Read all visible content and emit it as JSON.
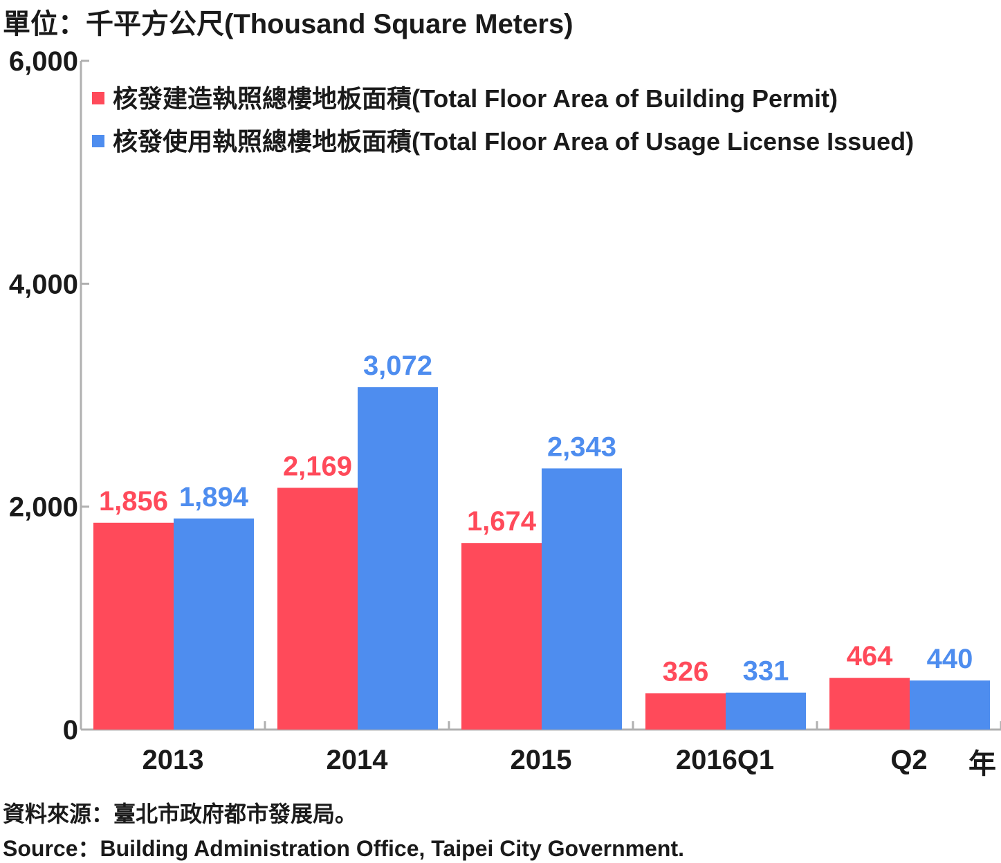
{
  "unit_label": "單位：千平方公尺(Thousand Square Meters)",
  "x_suffix": "年",
  "source_zh": "資料來源：臺北市政府都市發展局。",
  "source_en": "Source：Building Administration Office, Taipei City Government.",
  "colors": {
    "permit": "#ff4a5a",
    "usage": "#4e8def",
    "axis": "#b0b0b0",
    "text": "#1a1a1a"
  },
  "chart_data": {
    "type": "bar",
    "categories": [
      "2013",
      "2014",
      "2015",
      "2016Q1",
      "Q2"
    ],
    "yticks": [
      "0",
      "2,000",
      "4,000",
      "6,000"
    ],
    "ylim": [
      0,
      6000
    ],
    "grid": false,
    "legend_position": "top-left",
    "series": [
      {
        "name": "核發建造執照總樓地板面積(Total Floor Area of Building Permit)",
        "values": [
          1856,
          2169,
          1674,
          326,
          464
        ],
        "labels": [
          "1,856",
          "2,169",
          "1,674",
          "326",
          "464"
        ]
      },
      {
        "name": "核發使用執照總樓地板面積(Total Floor Area of Usage License Issued)",
        "values": [
          1894,
          3072,
          2343,
          331,
          440
        ],
        "labels": [
          "1,894",
          "3,072",
          "2,343",
          "331",
          "440"
        ]
      }
    ]
  }
}
